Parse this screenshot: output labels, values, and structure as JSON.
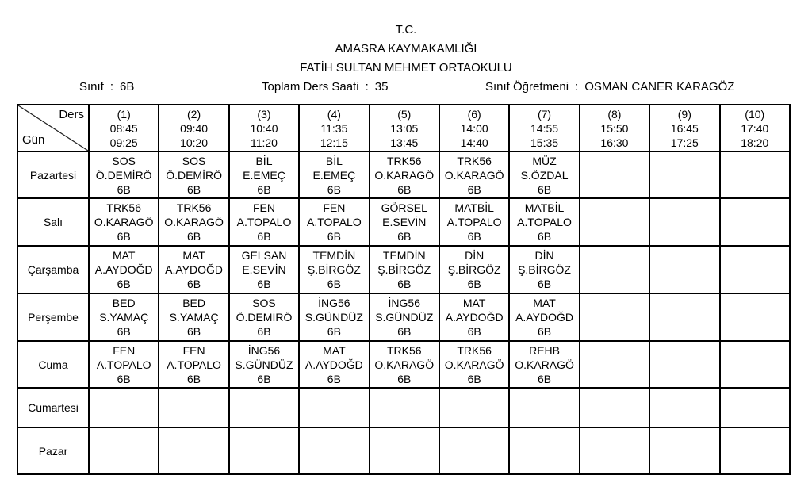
{
  "colors": {
    "text": "#000000",
    "background": "#ffffff",
    "border": "#000000"
  },
  "header": {
    "line1": "T.C.",
    "line2": "AMASRA KAYMAKAMLIĞI",
    "line3": "FATİH SULTAN MEHMET ORTAOKULU"
  },
  "info": {
    "separator": ":",
    "class_label": "Sınıf",
    "class_value": "6B",
    "total_label": "Toplam Ders Saati",
    "total_value": "35",
    "teacher_label": "Sınıf Öğretmeni",
    "teacher_value": "OSMAN CANER KARAGÖZ"
  },
  "table": {
    "corner": {
      "top": "Ders",
      "bottom": "Gün"
    },
    "periods": [
      {
        "num": "(1)",
        "start": "08:45",
        "end": "09:25"
      },
      {
        "num": "(2)",
        "start": "09:40",
        "end": "10:20"
      },
      {
        "num": "(3)",
        "start": "10:40",
        "end": "11:20"
      },
      {
        "num": "(4)",
        "start": "11:35",
        "end": "12:15"
      },
      {
        "num": "(5)",
        "start": "13:05",
        "end": "13:45"
      },
      {
        "num": "(6)",
        "start": "14:00",
        "end": "14:40"
      },
      {
        "num": "(7)",
        "start": "14:55",
        "end": "15:35"
      },
      {
        "num": "(8)",
        "start": "15:50",
        "end": "16:30"
      },
      {
        "num": "(9)",
        "start": "16:45",
        "end": "17:25"
      },
      {
        "num": "(10)",
        "start": "17:40",
        "end": "18:20"
      }
    ],
    "days": [
      {
        "label": "Pazartesi",
        "lessons": [
          {
            "subject": "SOS",
            "teacher": "Ö.DEMİRÖ",
            "class": "6B"
          },
          {
            "subject": "SOS",
            "teacher": "Ö.DEMİRÖ",
            "class": "6B"
          },
          {
            "subject": "BİL",
            "teacher": "E.EMEÇ",
            "class": "6B"
          },
          {
            "subject": "BİL",
            "teacher": "E.EMEÇ",
            "class": "6B"
          },
          {
            "subject": "TRK56",
            "teacher": "O.KARAGÖ",
            "class": "6B"
          },
          {
            "subject": "TRK56",
            "teacher": "O.KARAGÖ",
            "class": "6B"
          },
          {
            "subject": "MÜZ",
            "teacher": "S.ÖZDAL",
            "class": "6B"
          },
          null,
          null,
          null
        ]
      },
      {
        "label": "Salı",
        "lessons": [
          {
            "subject": "TRK56",
            "teacher": "O.KARAGÖ",
            "class": "6B"
          },
          {
            "subject": "TRK56",
            "teacher": "O.KARAGÖ",
            "class": "6B"
          },
          {
            "subject": "FEN",
            "teacher": "A.TOPALO",
            "class": "6B"
          },
          {
            "subject": "FEN",
            "teacher": "A.TOPALO",
            "class": "6B"
          },
          {
            "subject": "GÖRSEL",
            "teacher": "E.SEVİN",
            "class": "6B"
          },
          {
            "subject": "MATBİL",
            "teacher": "A.TOPALO",
            "class": "6B"
          },
          {
            "subject": "MATBİL",
            "teacher": "A.TOPALO",
            "class": "6B"
          },
          null,
          null,
          null
        ]
      },
      {
        "label": "Çarşamba",
        "lessons": [
          {
            "subject": "MAT",
            "teacher": "A.AYDOĞD",
            "class": "6B"
          },
          {
            "subject": "MAT",
            "teacher": "A.AYDOĞD",
            "class": "6B"
          },
          {
            "subject": "GELSAN",
            "teacher": "E.SEVİN",
            "class": "6B"
          },
          {
            "subject": "TEMDİN",
            "teacher": "Ş.BİRGÖZ",
            "class": "6B"
          },
          {
            "subject": "TEMDİN",
            "teacher": "Ş.BİRGÖZ",
            "class": "6B"
          },
          {
            "subject": "DİN",
            "teacher": "Ş.BİRGÖZ",
            "class": "6B"
          },
          {
            "subject": "DİN",
            "teacher": "Ş.BİRGÖZ",
            "class": "6B"
          },
          null,
          null,
          null
        ]
      },
      {
        "label": "Perşembe",
        "lessons": [
          {
            "subject": "BED",
            "teacher": "S.YAMAÇ",
            "class": "6B"
          },
          {
            "subject": "BED",
            "teacher": "S.YAMAÇ",
            "class": "6B"
          },
          {
            "subject": "SOS",
            "teacher": "Ö.DEMİRÖ",
            "class": "6B"
          },
          {
            "subject": "İNG56",
            "teacher": "S.GÜNDÜZ",
            "class": "6B"
          },
          {
            "subject": "İNG56",
            "teacher": "S.GÜNDÜZ",
            "class": "6B"
          },
          {
            "subject": "MAT",
            "teacher": "A.AYDOĞD",
            "class": "6B"
          },
          {
            "subject": "MAT",
            "teacher": "A.AYDOĞD",
            "class": "6B"
          },
          null,
          null,
          null
        ]
      },
      {
        "label": "Cuma",
        "lessons": [
          {
            "subject": "FEN",
            "teacher": "A.TOPALO",
            "class": "6B"
          },
          {
            "subject": "FEN",
            "teacher": "A.TOPALO",
            "class": "6B"
          },
          {
            "subject": "İNG56",
            "teacher": "S.GÜNDÜZ",
            "class": "6B"
          },
          {
            "subject": "MAT",
            "teacher": "A.AYDOĞD",
            "class": "6B"
          },
          {
            "subject": "TRK56",
            "teacher": "O.KARAGÖ",
            "class": "6B"
          },
          {
            "subject": "TRK56",
            "teacher": "O.KARAGÖ",
            "class": "6B"
          },
          {
            "subject": "REHB",
            "teacher": "O.KARAGÖ",
            "class": "6B"
          },
          null,
          null,
          null
        ]
      },
      {
        "label": "Cumartesi",
        "lessons": [
          null,
          null,
          null,
          null,
          null,
          null,
          null,
          null,
          null,
          null
        ]
      },
      {
        "label": "Pazar",
        "lessons": [
          null,
          null,
          null,
          null,
          null,
          null,
          null,
          null,
          null,
          null
        ]
      }
    ]
  }
}
